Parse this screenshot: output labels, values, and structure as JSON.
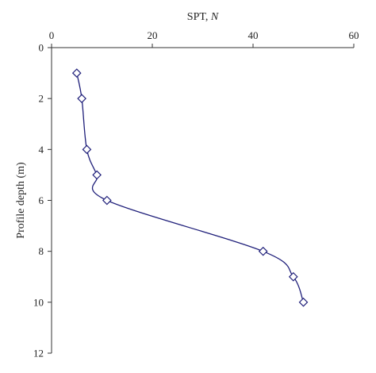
{
  "chart_data": {
    "type": "line",
    "title": "",
    "xlabel": "SPT, ",
    "xlabel_italic": "N",
    "ylabel": "Profile depth (m)",
    "x_axis_position": "top",
    "y_inverted": true,
    "xlim": [
      0,
      60
    ],
    "ylim": [
      0,
      12
    ],
    "x_ticks": [
      0,
      20,
      40,
      60
    ],
    "y_ticks": [
      0,
      2,
      4,
      6,
      8,
      10,
      12
    ],
    "grid": false,
    "series": [
      {
        "marker": "diamond",
        "smooth": true,
        "color": "#1f1f7a",
        "points": [
          {
            "x": 5,
            "y": 1
          },
          {
            "x": 6,
            "y": 2
          },
          {
            "x": 7,
            "y": 4
          },
          {
            "x": 9,
            "y": 5
          },
          {
            "x": 11,
            "y": 6
          },
          {
            "x": 42,
            "y": 8
          },
          {
            "x": 48,
            "y": 9
          },
          {
            "x": 50,
            "y": 10
          }
        ]
      }
    ]
  }
}
